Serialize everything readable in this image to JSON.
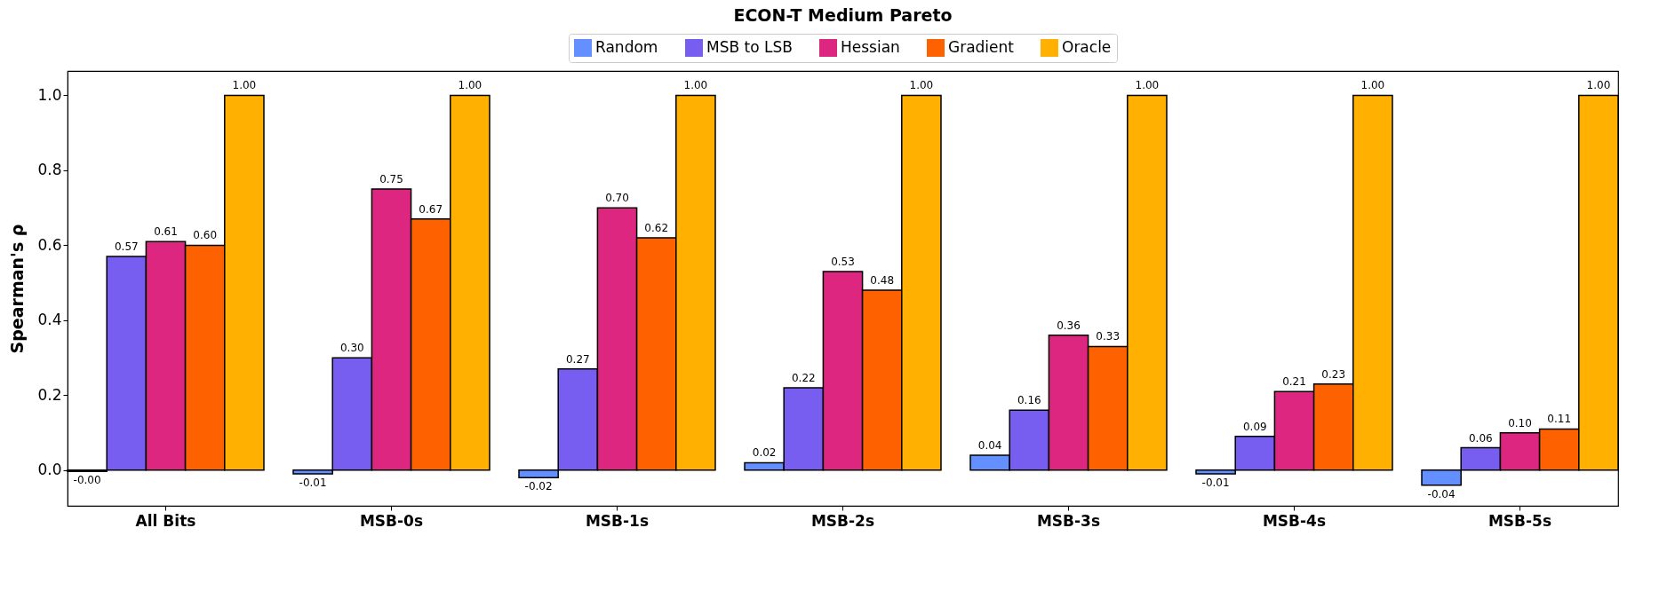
{
  "chart_data": {
    "type": "bar",
    "title": "ECON-T Medium Pareto",
    "ylabel": "Spearman's ρ",
    "categories": [
      "All Bits",
      "MSB-0s",
      "MSB-1s",
      "MSB-2s",
      "MSB-3s",
      "MSB-4s",
      "MSB-5s"
    ],
    "series": [
      {
        "name": "Random",
        "color": "#648fff",
        "values": [
          -0.003,
          -0.01,
          -0.02,
          0.02,
          0.04,
          -0.01,
          -0.04
        ],
        "value_labels": [
          "-0.00",
          "-0.01",
          "-0.02",
          "0.02",
          "0.04",
          "-0.01",
          "-0.04"
        ]
      },
      {
        "name": "MSB to LSB",
        "color": "#785ef0",
        "values": [
          0.57,
          0.3,
          0.27,
          0.22,
          0.16,
          0.09,
          0.06
        ],
        "value_labels": [
          "0.57",
          "0.30",
          "0.27",
          "0.22",
          "0.16",
          "0.09",
          "0.06"
        ]
      },
      {
        "name": "Hessian",
        "color": "#dc267f",
        "values": [
          0.61,
          0.75,
          0.7,
          0.53,
          0.36,
          0.21,
          0.1
        ],
        "value_labels": [
          "0.61",
          "0.75",
          "0.70",
          "0.53",
          "0.36",
          "0.21",
          "0.10"
        ]
      },
      {
        "name": "Gradient",
        "color": "#fe6100",
        "values": [
          0.6,
          0.67,
          0.62,
          0.48,
          0.33,
          0.23,
          0.11
        ],
        "value_labels": [
          "0.60",
          "0.67",
          "0.62",
          "0.48",
          "0.33",
          "0.23",
          "0.11"
        ]
      },
      {
        "name": "Oracle",
        "color": "#ffb000",
        "values": [
          1.0,
          1.0,
          1.0,
          1.0,
          1.0,
          1.0,
          1.0
        ],
        "value_labels": [
          "1.00",
          "1.00",
          "1.00",
          "1.00",
          "1.00",
          "1.00",
          "1.00"
        ]
      }
    ],
    "ylim": [
      -0.095,
      1.065
    ],
    "yticks": [
      {
        "value": 0,
        "label": "0.0"
      },
      0.2,
      0.4,
      0.6,
      0.8,
      {
        "value": 1,
        "label": "1.0"
      }
    ],
    "grid": false,
    "legend": "top"
  }
}
